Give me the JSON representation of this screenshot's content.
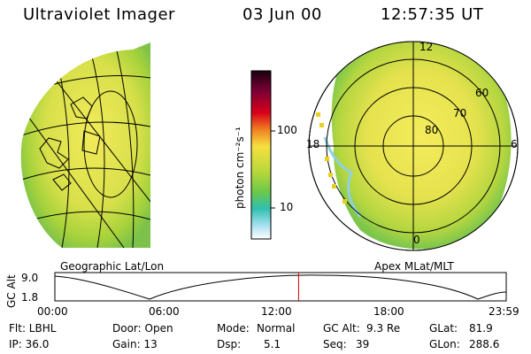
{
  "header": {
    "title": "Ultraviolet Imager",
    "date": "03 Jun 00",
    "time": "12:57:35 UT"
  },
  "left_panel": {
    "caption": "Geographic Lat/Lon"
  },
  "right_panel": {
    "caption": "Apex MLat/MLT",
    "mlt_labels": {
      "top": "12",
      "left": "18",
      "right": "6",
      "bottom": "0"
    },
    "lat_labels": [
      "60",
      "70",
      "80"
    ]
  },
  "colorbar": {
    "unit_label": "photon cm⁻²s⁻¹",
    "ticks": [
      "100",
      "10"
    ]
  },
  "altitude_plot": {
    "axis_label": "GC Alt",
    "ymax": "9.0",
    "ymin": "1.8",
    "x_ticks": [
      "00:00",
      "06:00",
      "12:00",
      "18:00",
      "23:59"
    ],
    "current_time_fraction": 0.54
  },
  "status": {
    "flt": "Flt: LBHL",
    "ip": "IP: 36.0",
    "door": "Door: Open",
    "gain": "Gain: 13",
    "mode_label": "Mode:",
    "mode_value": "Normal",
    "dsp_label": "Dsp:",
    "dsp_value": "5.1",
    "gcalt_label": "GC Alt:",
    "gcalt_value": "9.3 Re",
    "seq_label": "Seq:",
    "seq_value": "39",
    "glat_label": "GLat:",
    "glat_value": "81.9",
    "glon_label": "GLon:",
    "glon_value": "288.6"
  },
  "colors": {
    "aurora_green": "#9acd32",
    "aurora_yellow": "#f0e84a",
    "marker_red": "#d00000"
  }
}
